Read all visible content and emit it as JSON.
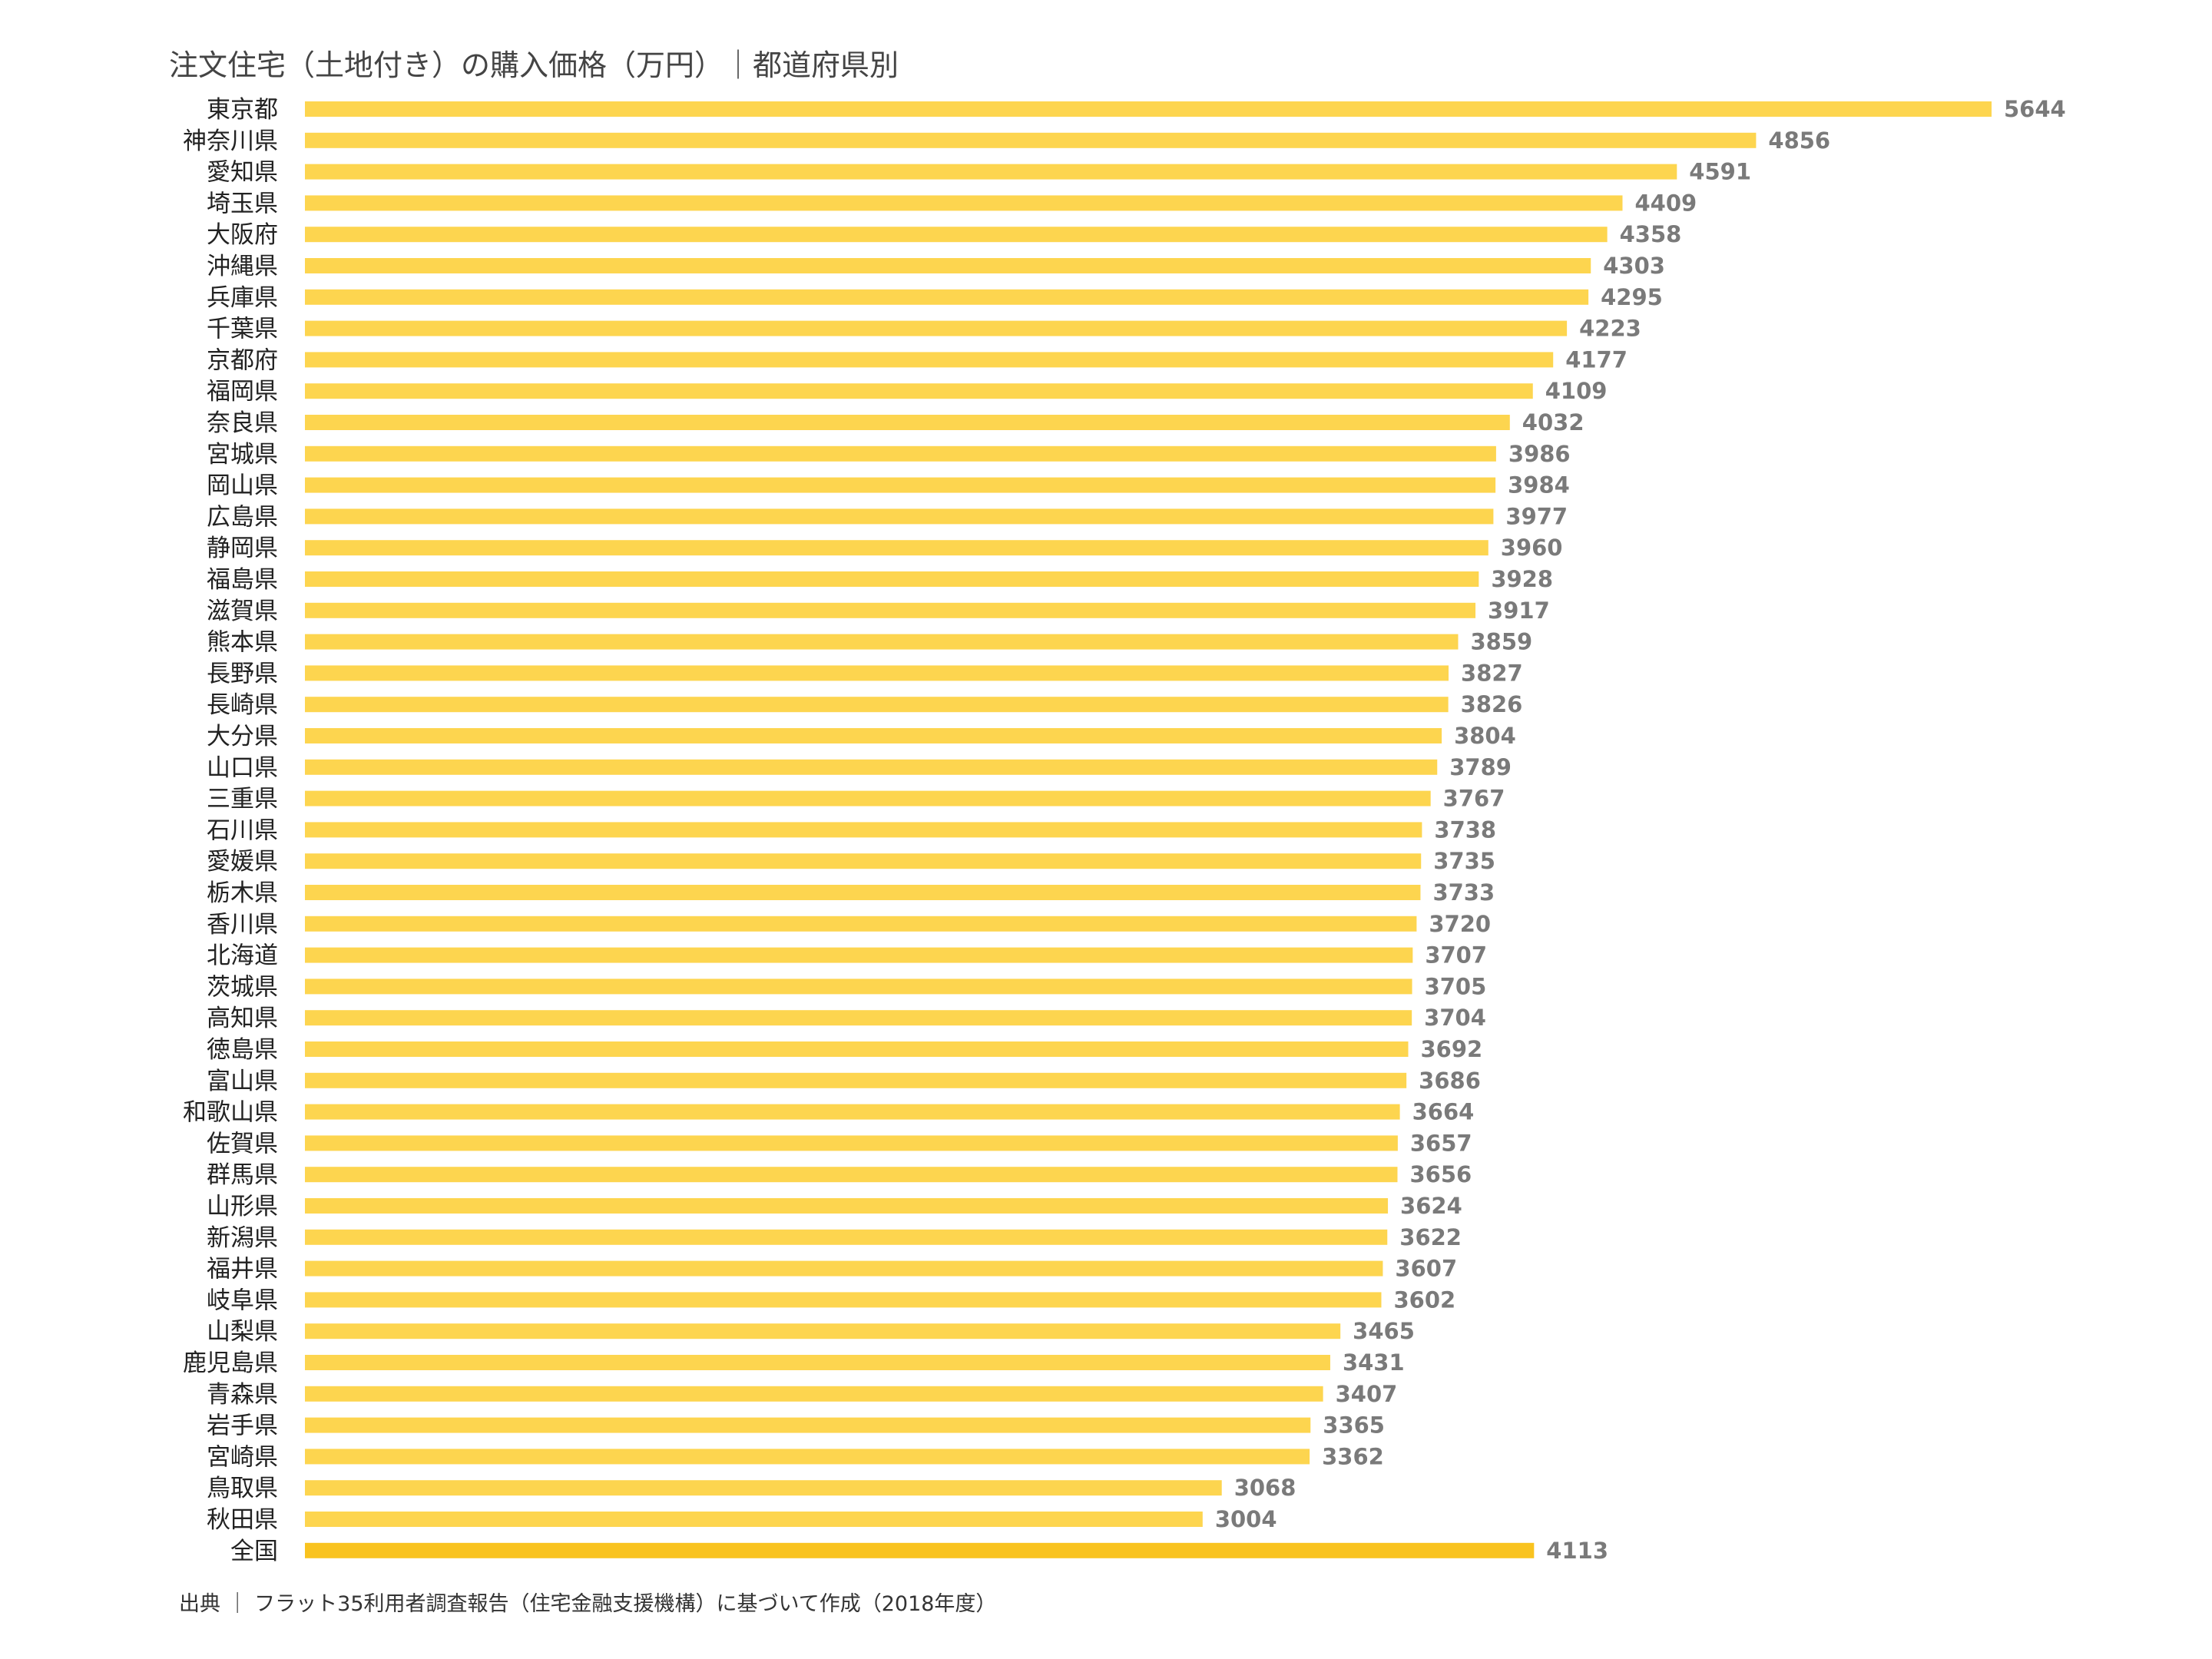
{
  "chart_data": {
    "type": "bar",
    "orientation": "horizontal",
    "title": "注文住宅（土地付き）の購入価格（万円）｜都道府県別",
    "source": "出典 ｜ フラット35利用者調査報告（住宅金融支援機構）に基づいて作成（2018年度）",
    "categories": [
      "東京都",
      "神奈川県",
      "愛知県",
      "埼玉県",
      "大阪府",
      "沖縄県",
      "兵庫県",
      "千葉県",
      "京都府",
      "福岡県",
      "奈良県",
      "宮城県",
      "岡山県",
      "広島県",
      "静岡県",
      "福島県",
      "滋賀県",
      "熊本県",
      "長野県",
      "長崎県",
      "大分県",
      "山口県",
      "三重県",
      "石川県",
      "愛媛県",
      "栃木県",
      "香川県",
      "北海道",
      "茨城県",
      "高知県",
      "徳島県",
      "富山県",
      "和歌山県",
      "佐賀県",
      "群馬県",
      "山形県",
      "新潟県",
      "福井県",
      "岐阜県",
      "山梨県",
      "鹿児島県",
      "青森県",
      "岩手県",
      "宮崎県",
      "鳥取県",
      "秋田県",
      "全国"
    ],
    "values": [
      5644,
      4856,
      4591,
      4409,
      4358,
      4303,
      4295,
      4223,
      4177,
      4109,
      4032,
      3986,
      3984,
      3977,
      3960,
      3928,
      3917,
      3859,
      3827,
      3826,
      3804,
      3789,
      3767,
      3738,
      3735,
      3733,
      3720,
      3707,
      3705,
      3704,
      3692,
      3686,
      3664,
      3657,
      3656,
      3624,
      3622,
      3607,
      3602,
      3465,
      3431,
      3407,
      3365,
      3362,
      3068,
      3004,
      4113
    ],
    "highlight_category": "全国",
    "bar_color": "#FDD54F",
    "highlight_color": "#F9C31F",
    "value_label_color": "#7A7A7A",
    "xlim": [
      0,
      5644
    ],
    "grid": false,
    "legend": "none"
  }
}
